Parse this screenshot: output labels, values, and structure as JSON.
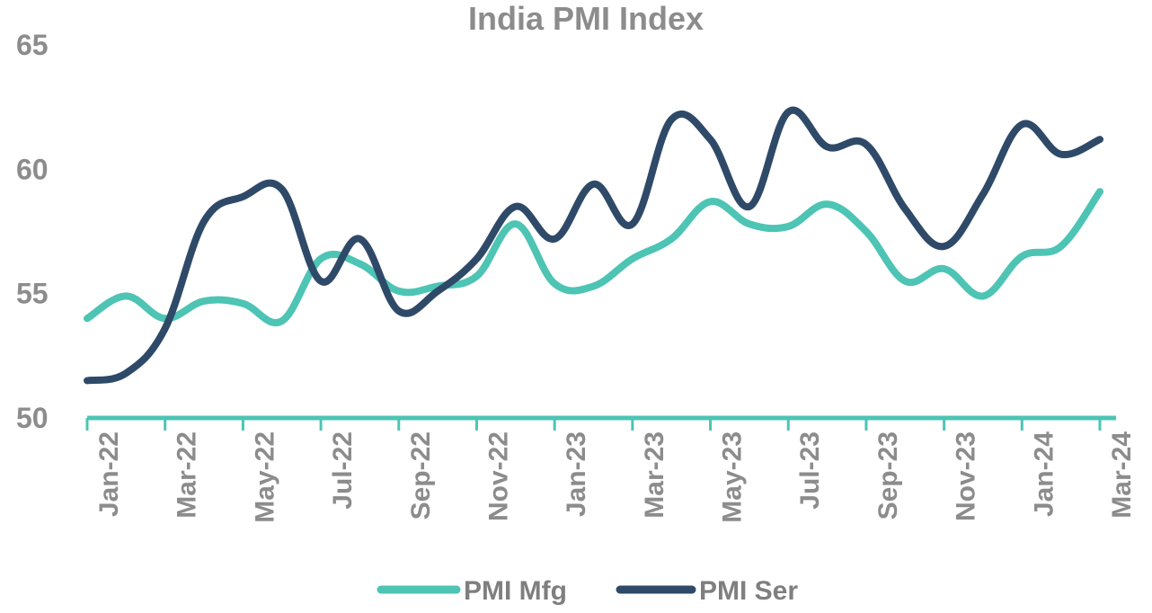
{
  "chart_data": {
    "type": "line",
    "title": "India PMI Index",
    "xlabel": "",
    "ylabel": "",
    "ylim": [
      50,
      65
    ],
    "yticks": [
      "50",
      "55",
      "60",
      "65"
    ],
    "x": [
      "Jan-22",
      "Feb-22",
      "Mar-22",
      "Apr-22",
      "May-22",
      "Jun-22",
      "Jul-22",
      "Aug-22",
      "Sep-22",
      "Oct-22",
      "Nov-22",
      "Dec-22",
      "Jan-23",
      "Feb-23",
      "Mar-23",
      "Apr-23",
      "May-23",
      "Jun-23",
      "Jul-23",
      "Aug-23",
      "Sep-23",
      "Oct-23",
      "Nov-23",
      "Dec-23",
      "Jan-24",
      "Feb-24",
      "Mar-24"
    ],
    "xtick_labels": [
      "Jan-22",
      "Mar-22",
      "May-22",
      "Jul-22",
      "Sep-22",
      "Nov-22",
      "Jan-23",
      "Mar-23",
      "May-23",
      "Jul-23",
      "Sep-23",
      "Nov-23",
      "Jan-24",
      "Mar-24"
    ],
    "xtick_indices": [
      0,
      2,
      4,
      6,
      8,
      10,
      12,
      14,
      16,
      18,
      20,
      22,
      24,
      26
    ],
    "grid": false,
    "legend_position": "bottom",
    "series": [
      {
        "name": "PMI Mfg",
        "color": "#4dc4b4",
        "values": [
          54.0,
          54.9,
          54.0,
          54.7,
          54.6,
          53.9,
          56.4,
          56.2,
          55.1,
          55.3,
          55.7,
          57.8,
          55.4,
          55.3,
          56.4,
          57.2,
          58.7,
          57.8,
          57.7,
          58.6,
          57.5,
          55.5,
          56.0,
          54.9,
          56.5,
          56.9,
          59.1
        ]
      },
      {
        "name": "PMI Ser",
        "color": "#2f4a68",
        "values": [
          51.5,
          51.8,
          53.6,
          57.9,
          58.9,
          59.2,
          55.5,
          57.2,
          54.3,
          55.1,
          56.4,
          58.5,
          57.2,
          59.4,
          57.8,
          62.0,
          61.2,
          58.5,
          62.3,
          60.9,
          61.0,
          58.4,
          56.9,
          59.0,
          61.8,
          60.6,
          61.2
        ]
      }
    ]
  }
}
